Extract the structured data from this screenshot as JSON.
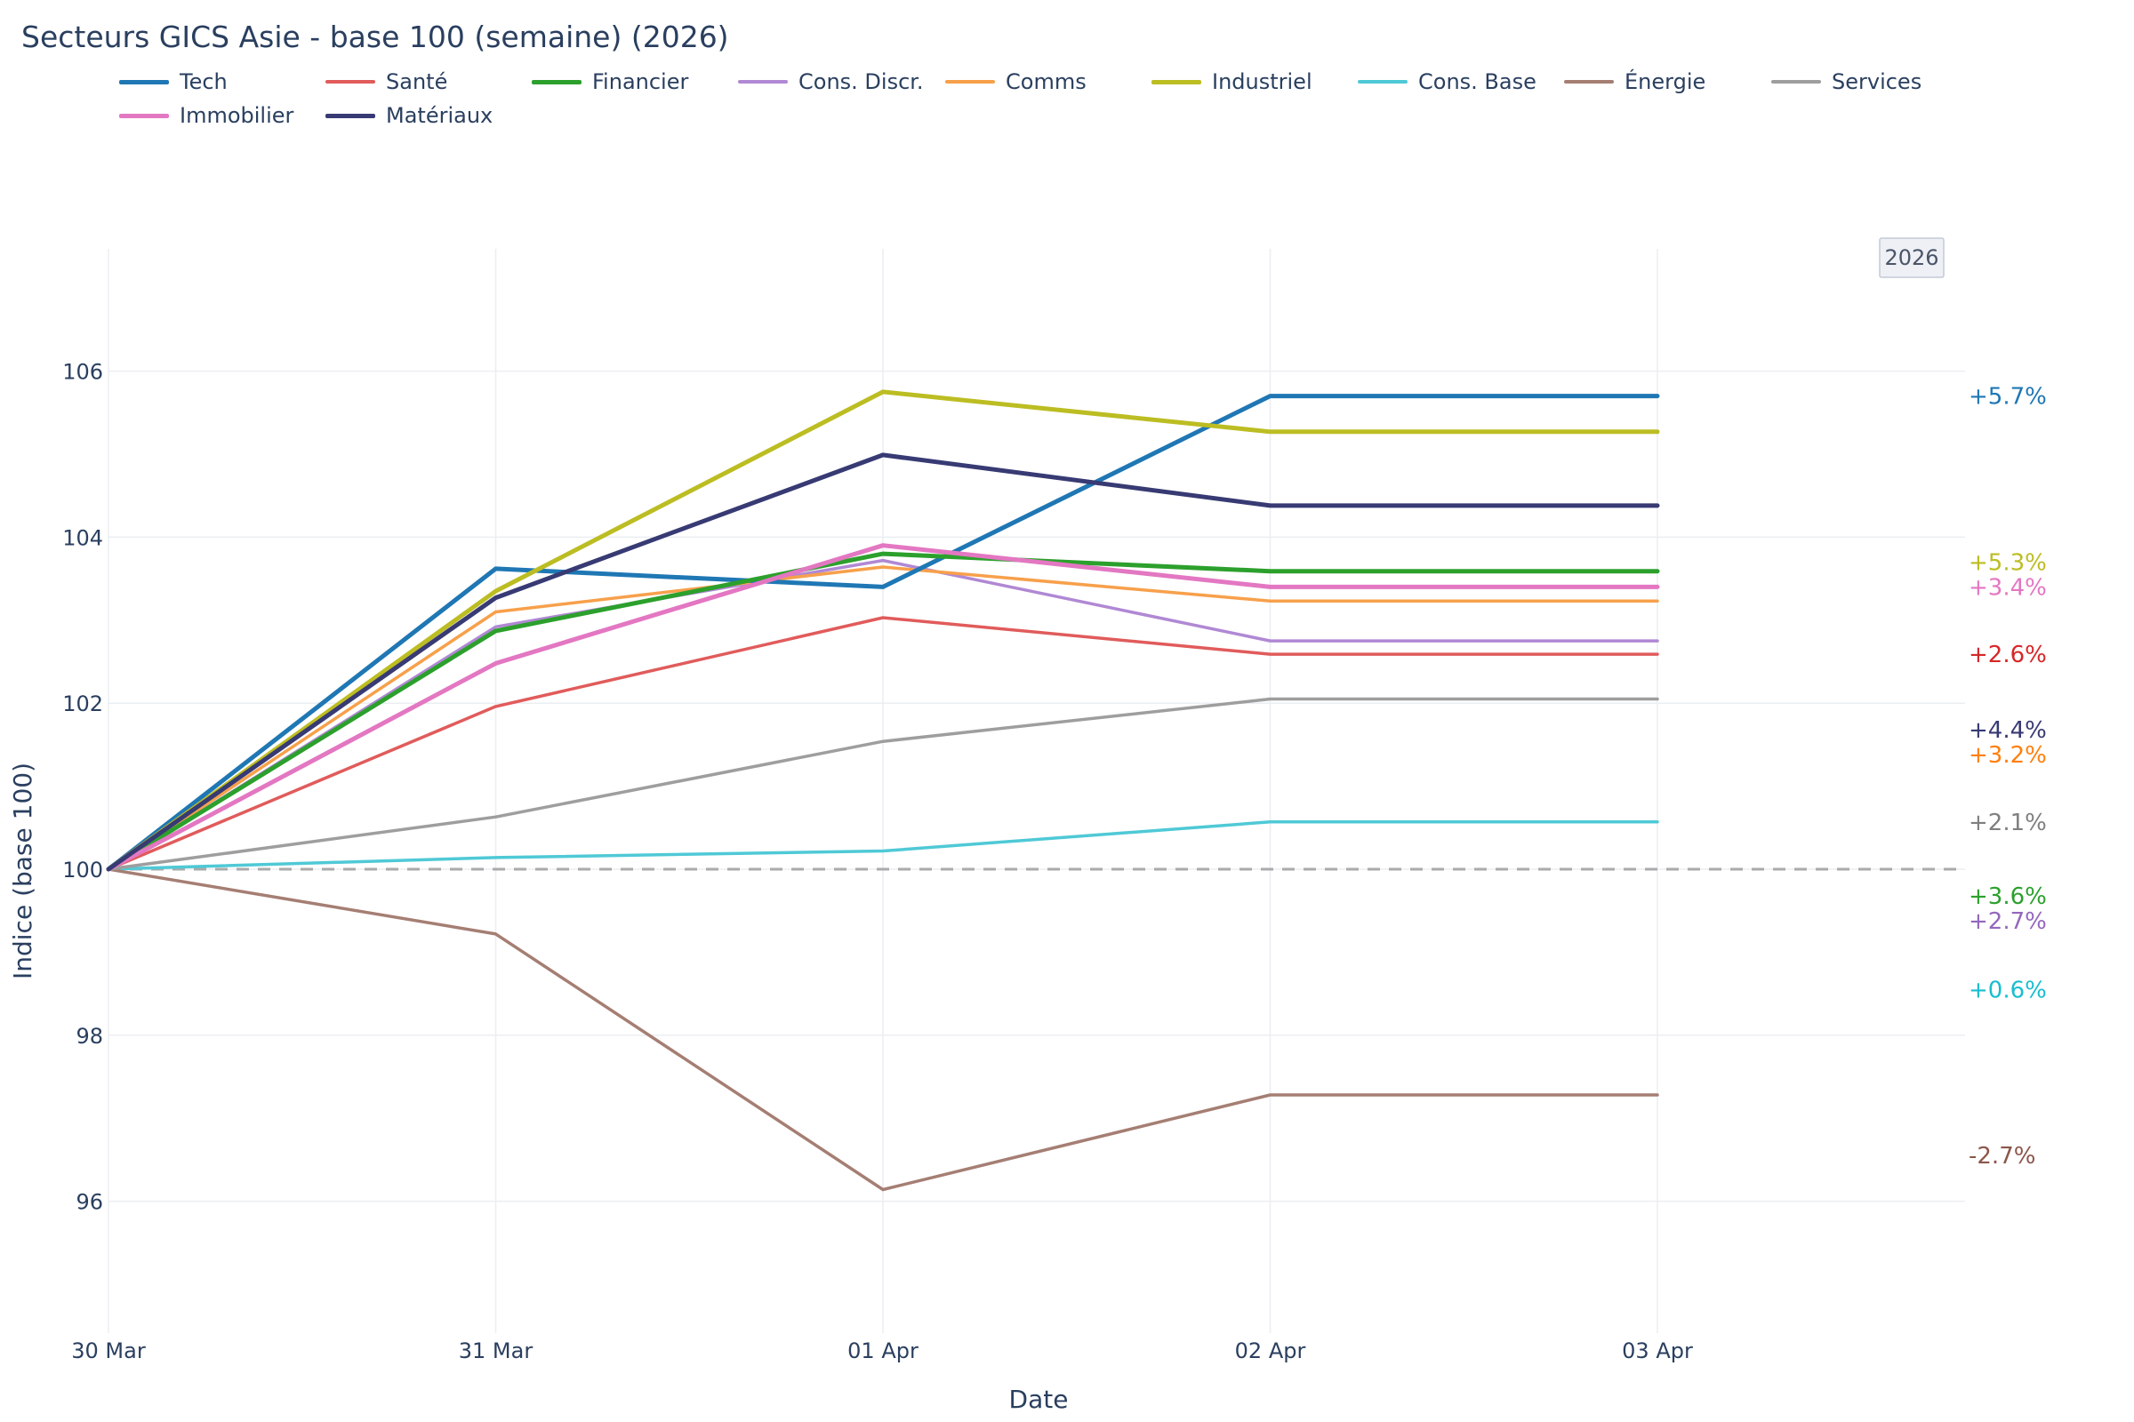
{
  "chart_data": {
    "type": "line",
    "title": "Secteurs GICS Asie - base 100 (semaine) (2026)",
    "xlabel": "Date",
    "ylabel": "Indice (base 100)",
    "x": [
      "30 Mar",
      "31 Mar",
      "01 Apr",
      "02 Apr",
      "03 Apr"
    ],
    "ylim": [
      94.5,
      107.5
    ],
    "yticks": [
      96,
      98,
      100,
      102,
      104,
      106
    ],
    "grid": true,
    "reference_line": {
      "y": 100,
      "style": "dashed",
      "color": "#aaaaaa"
    },
    "year_badge": "2026",
    "legend_position": "top",
    "series": [
      {
        "name": "Tech",
        "color": "#1f77b4",
        "width": 5,
        "values": [
          100,
          103.62,
          103.4,
          105.7,
          105.7
        ],
        "end_label": "+5.7%",
        "end_label_value": 105.7
      },
      {
        "name": "Santé",
        "color": "#e15b5b",
        "width": 3.5,
        "values": [
          100,
          101.96,
          103.03,
          102.59,
          102.59
        ],
        "end_label": "+2.6%",
        "end_label_value": 102.59
      },
      {
        "name": "Financier",
        "color": "#2ca02c",
        "width": 5,
        "values": [
          100,
          102.87,
          103.8,
          103.59,
          103.59
        ],
        "end_label": "+3.6%",
        "end_label_value": 99.68
      },
      {
        "name": "Cons. Discr.",
        "color": "#b088d4",
        "width": 3.5,
        "values": [
          100,
          102.92,
          103.72,
          102.75,
          102.75
        ],
        "end_label": "+2.7%",
        "end_label_value": 99.38
      },
      {
        "name": "Comms",
        "color": "#f7a04b",
        "width": 3.5,
        "values": [
          100,
          103.1,
          103.64,
          103.23,
          103.23
        ],
        "end_label": "+3.2%",
        "end_label_value": 101.38
      },
      {
        "name": "Industriel",
        "color": "#bcbd22",
        "width": 5,
        "values": [
          100,
          103.35,
          105.75,
          105.27,
          105.27
        ],
        "end_label": "+5.3%",
        "end_label_value": 103.7
      },
      {
        "name": "Cons. Base",
        "color": "#4fc9d6",
        "width": 3.5,
        "values": [
          100,
          100.14,
          100.22,
          100.57,
          100.57
        ],
        "end_label": "+0.6%",
        "end_label_value": 98.55
      },
      {
        "name": "Énergie",
        "color": "#a57e73",
        "width": 3.5,
        "values": [
          100,
          99.22,
          96.14,
          97.28,
          97.28
        ],
        "end_label": "-2.7%",
        "end_label_value": 96.55
      },
      {
        "name": "Services",
        "color": "#9e9e9e",
        "width": 3.5,
        "values": [
          100,
          100.63,
          101.54,
          102.05,
          102.05
        ],
        "end_label": "+2.1%",
        "end_label_value": 100.57
      },
      {
        "name": "Immobilier",
        "color": "#e377c2",
        "width": 5,
        "values": [
          100,
          102.48,
          103.9,
          103.4,
          103.4
        ],
        "end_label": "+3.4%",
        "end_label_value": 103.4
      },
      {
        "name": "Matériaux",
        "color": "#373a73",
        "width": 5,
        "values": [
          100,
          103.27,
          104.99,
          104.38,
          104.38
        ],
        "end_label": "+4.4%",
        "end_label_value": 101.68
      }
    ],
    "end_label_colors": {
      "Tech": "#1f77b4",
      "Santé": "#d62728",
      "Financier": "#2ca02c",
      "Cons. Discr.": "#9467bd",
      "Comms": "#ff7f0e",
      "Industriel": "#bcbd22",
      "Cons. Base": "#17becf",
      "Énergie": "#8c564b",
      "Services": "#7f7f7f",
      "Immobilier": "#e377c2",
      "Matériaux": "#373a73"
    }
  }
}
